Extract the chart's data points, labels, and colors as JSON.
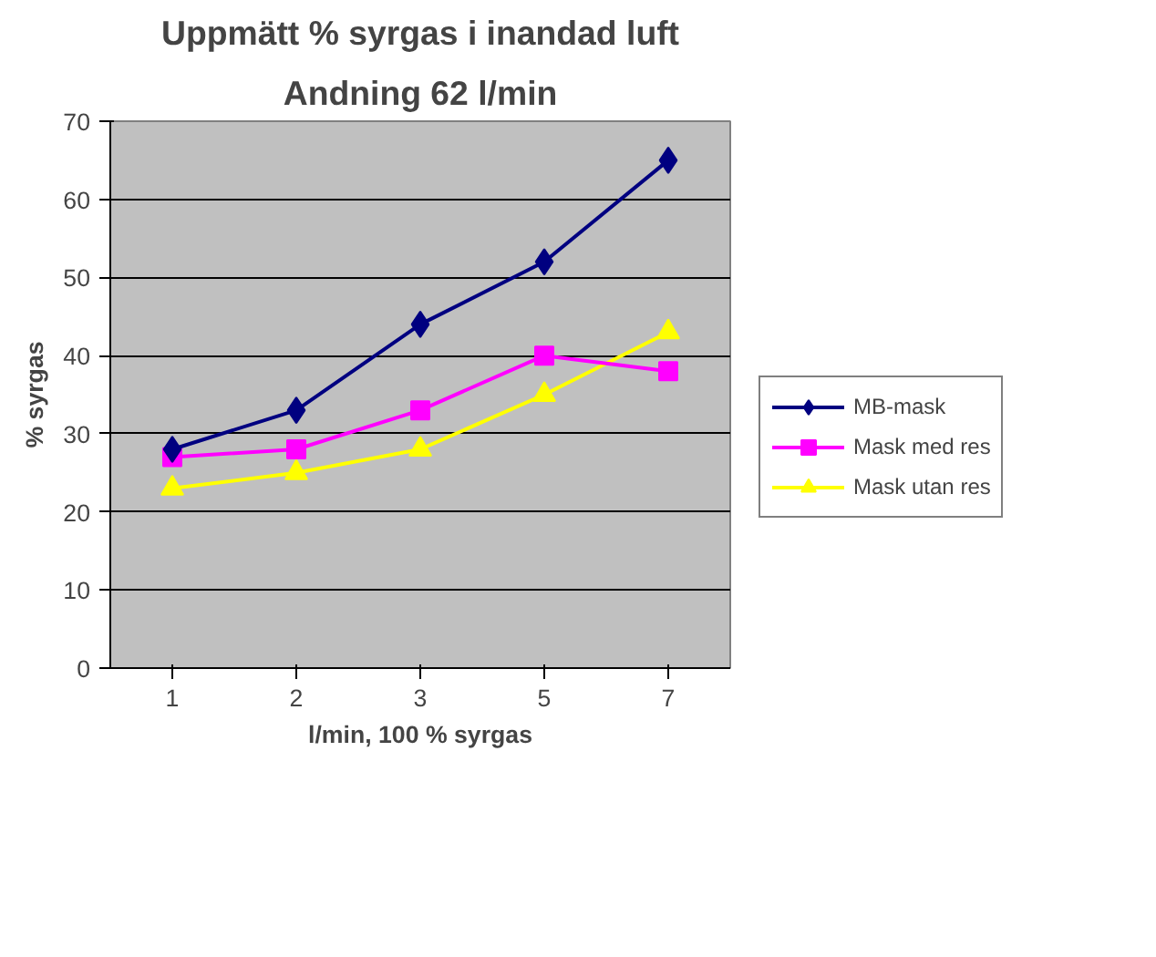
{
  "chart_data": {
    "type": "line",
    "title": "Uppmätt % syrgas i inandad luft",
    "subtitle": "Andning 62 l/min",
    "xlabel": "l/min, 100 % syrgas",
    "ylabel": "% syrgas",
    "categories": [
      "1",
      "2",
      "3",
      "5",
      "7"
    ],
    "series": [
      {
        "name": "MB-mask",
        "color": "#000080",
        "marker": "diamond",
        "values": [
          28,
          33,
          44,
          52,
          65
        ]
      },
      {
        "name": "Mask med res",
        "color": "#ff00ff",
        "marker": "square",
        "values": [
          27,
          28,
          33,
          40,
          38
        ]
      },
      {
        "name": "Mask utan res",
        "color": "#ffff00",
        "marker": "triangle",
        "values": [
          23,
          25,
          28,
          35,
          43
        ]
      }
    ],
    "ylim": [
      0,
      70
    ],
    "yticks": [
      0,
      10,
      20,
      30,
      40,
      50,
      60,
      70
    ],
    "grid": "y",
    "legend": "right",
    "line_style": "solid"
  }
}
